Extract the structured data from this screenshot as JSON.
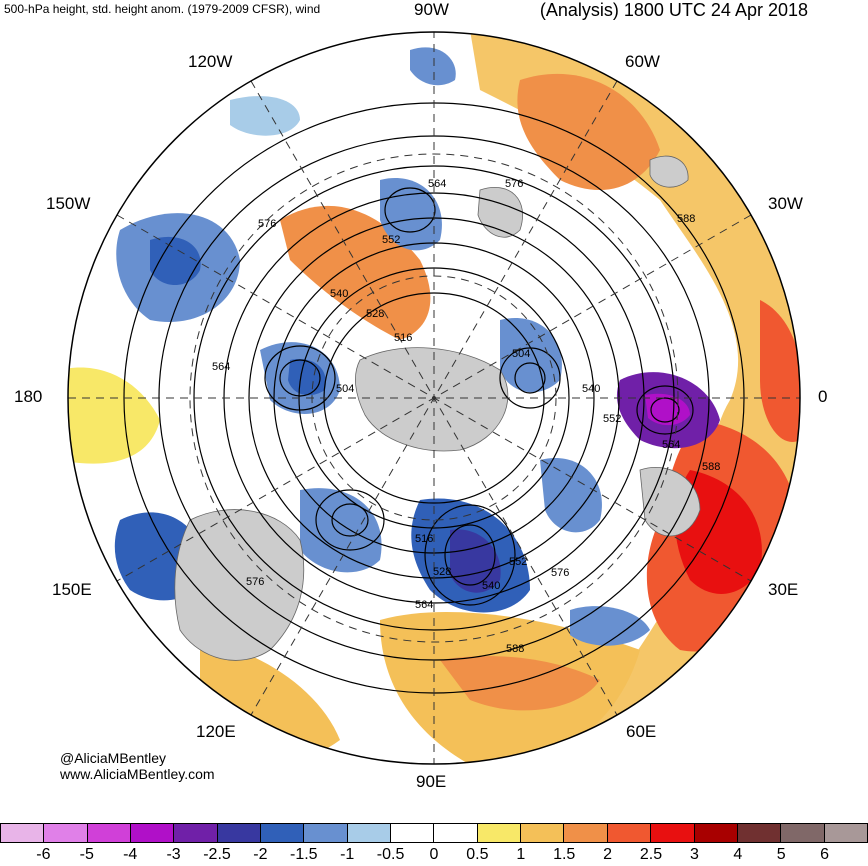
{
  "header": {
    "left_title": "500-hPa height, std. height anom. (1979-2009 CFSR), wind",
    "right_title": "(Analysis) 1800 UTC 24 Apr 2018"
  },
  "longitude_labels": {
    "top": "90W",
    "upper_left": "120W",
    "upper_right": "60W",
    "mid_left": "150W",
    "mid_right": "30W",
    "left": "180",
    "right": "0",
    "lower_left": "150E",
    "lower_right": "30E",
    "bottom_left": "120E",
    "bottom_right": "60E",
    "bottom": "90E"
  },
  "contour_labels": [
    "564",
    "576",
    "552",
    "540",
    "528",
    "516",
    "504",
    "564",
    "504",
    "540",
    "552",
    "564",
    "576",
    "588",
    "516",
    "528",
    "540",
    "552",
    "576",
    "564",
    "588",
    "576",
    "588"
  ],
  "credits": {
    "handle": "@AliciaMBentley",
    "website": "www.AliciaMBentley.com"
  },
  "colorbar": {
    "colors": [
      "#e8b4e8",
      "#e080e8",
      "#d040d8",
      "#b010c8",
      "#7020a8",
      "#3838a0",
      "#3060b8",
      "#6890d0",
      "#a8cce8",
      "#ffffff",
      "#ffffff",
      "#f8e868",
      "#f4c058",
      "#f09048",
      "#f05830",
      "#e81010",
      "#a80000",
      "#703030",
      "#806868",
      "#a89898"
    ],
    "labels": [
      "-6",
      "-5",
      "-4",
      "-3",
      "-2.5",
      "-2",
      "-1.5",
      "-1",
      "-0.5",
      "0",
      "0.5",
      "1",
      "1.5",
      "2",
      "2.5",
      "3",
      "4",
      "5",
      "6"
    ]
  }
}
